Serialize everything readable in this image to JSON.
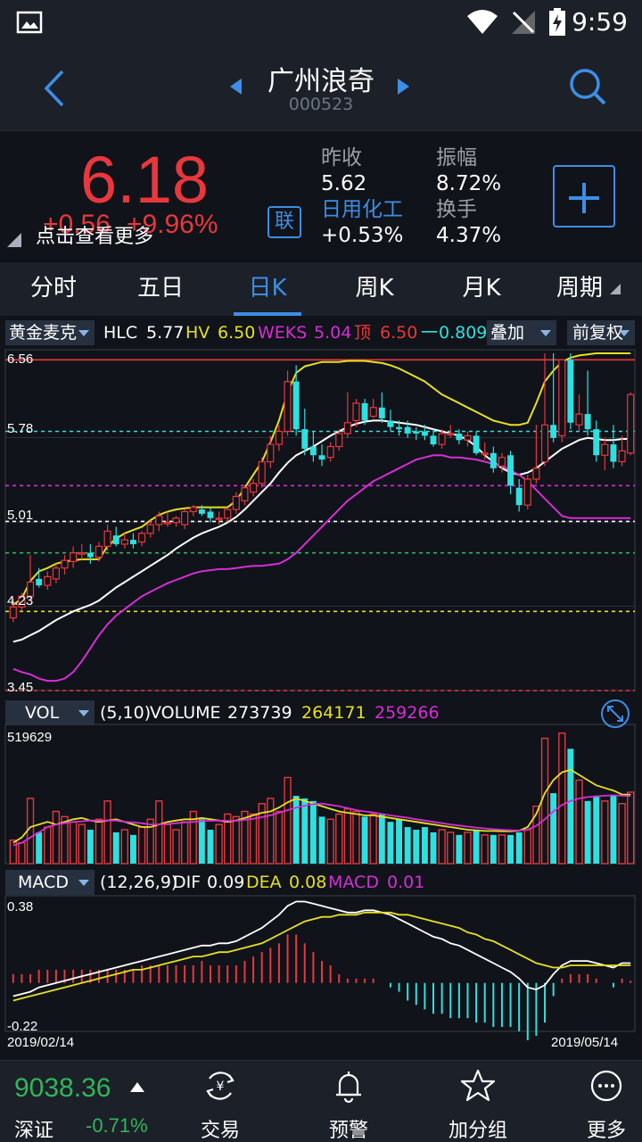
{
  "status_bar": {
    "time": "9:59"
  },
  "header": {
    "title": "广州浪奇",
    "code": "000523"
  },
  "quote": {
    "price": "6.18",
    "change_abs": "+0.56",
    "change_pct": "+9.96%",
    "tap_hint": "点击查看更多",
    "lian_badge": "联",
    "prev_close_label": "昨收",
    "prev_close": "5.62",
    "sector_label": "日用化工",
    "sector_change": "+0.53%",
    "amplitude_label": "振幅",
    "amplitude": "8.72%",
    "turnover_label": "换手",
    "turnover": "4.37%"
  },
  "tabs": [
    {
      "label": "分时"
    },
    {
      "label": "五日"
    },
    {
      "label": "日K"
    },
    {
      "label": "周K"
    },
    {
      "label": "月K"
    },
    {
      "label": "周期"
    }
  ],
  "active_tab": "日K",
  "main_legend": {
    "indicator": "黄金麦克",
    "hlc_label": "HLC",
    "hlc": "5.77",
    "hv_label": "HV",
    "hv": "6.50",
    "weks_label": "WEKS",
    "weks": "5.04",
    "top_label": "顶",
    "top": "6.50",
    "bottom_label": "一",
    "bottom": "0.809",
    "overlay": "叠加",
    "adjust": "前复权"
  },
  "vol_legend": {
    "indicator": "VOL",
    "params": "(5,10)",
    "volume_label": "VOLUME",
    "volume": "273739",
    "ma5": "264171",
    "ma10": "259266"
  },
  "macd_legend": {
    "indicator": "MACD",
    "params": "(12,26,9)",
    "dif_label": "DIF",
    "dif": "0.09",
    "dea_label": "DEA",
    "dea": "0.08",
    "macd_label": "MACD",
    "macd": "0.01"
  },
  "axis": {
    "price_ticks": [
      "6.56",
      "5.78",
      "5.01",
      "4.23",
      "3.45"
    ],
    "vol_max": "519629",
    "macd_max": "0.38",
    "macd_min": "-0.22",
    "start_date": "2019/02/14",
    "end_date": "2019/05/14"
  },
  "colors": {
    "up": "#e8383d",
    "down": "#2fe0e0",
    "hlc": "#ffffff",
    "hv": "#e6e024",
    "weks": "#d62ed6",
    "accent": "#3d8ee6"
  },
  "chart_data": {
    "type": "candlestick",
    "ylim": [
      3.45,
      6.56
    ],
    "candles": [
      {
        "o": 4.12,
        "h": 4.3,
        "l": 4.08,
        "c": 4.22
      },
      {
        "o": 4.22,
        "h": 4.35,
        "l": 4.18,
        "c": 4.32
      },
      {
        "o": 4.32,
        "h": 4.7,
        "l": 4.28,
        "c": 4.45
      },
      {
        "o": 4.48,
        "h": 4.58,
        "l": 4.4,
        "c": 4.42
      },
      {
        "o": 4.42,
        "h": 4.55,
        "l": 4.38,
        "c": 4.5
      },
      {
        "o": 4.48,
        "h": 4.62,
        "l": 4.44,
        "c": 4.58
      },
      {
        "o": 4.58,
        "h": 4.7,
        "l": 4.52,
        "c": 4.65
      },
      {
        "o": 4.64,
        "h": 4.78,
        "l": 4.58,
        "c": 4.72
      },
      {
        "o": 4.72,
        "h": 4.8,
        "l": 4.66,
        "c": 4.72
      },
      {
        "o": 4.72,
        "h": 4.8,
        "l": 4.62,
        "c": 4.68
      },
      {
        "o": 4.68,
        "h": 4.82,
        "l": 4.64,
        "c": 4.78
      },
      {
        "o": 4.78,
        "h": 4.98,
        "l": 4.74,
        "c": 4.92
      },
      {
        "o": 4.88,
        "h": 4.96,
        "l": 4.78,
        "c": 4.8
      },
      {
        "o": 4.8,
        "h": 4.9,
        "l": 4.76,
        "c": 4.84
      },
      {
        "o": 4.84,
        "h": 4.9,
        "l": 4.76,
        "c": 4.8
      },
      {
        "o": 4.82,
        "h": 4.92,
        "l": 4.78,
        "c": 4.9
      },
      {
        "o": 4.9,
        "h": 5.02,
        "l": 4.86,
        "c": 4.98
      },
      {
        "o": 4.98,
        "h": 5.1,
        "l": 4.92,
        "c": 5.06
      },
      {
        "o": 5.0,
        "h": 5.1,
        "l": 4.96,
        "c": 5.0
      },
      {
        "o": 5.0,
        "h": 5.06,
        "l": 4.96,
        "c": 5.04
      },
      {
        "o": 4.98,
        "h": 5.12,
        "l": 4.94,
        "c": 5.1
      },
      {
        "o": 5.1,
        "h": 5.16,
        "l": 5.06,
        "c": 5.14
      },
      {
        "o": 5.12,
        "h": 5.16,
        "l": 5.06,
        "c": 5.08
      },
      {
        "o": 5.1,
        "h": 5.14,
        "l": 5.0,
        "c": 5.04
      },
      {
        "o": 5.04,
        "h": 5.1,
        "l": 4.98,
        "c": 5.04
      },
      {
        "o": 5.04,
        "h": 5.14,
        "l": 5.0,
        "c": 5.12
      },
      {
        "o": 5.12,
        "h": 5.28,
        "l": 5.08,
        "c": 5.24
      },
      {
        "o": 5.2,
        "h": 5.34,
        "l": 5.16,
        "c": 5.32
      },
      {
        "o": 5.28,
        "h": 5.4,
        "l": 5.24,
        "c": 5.36
      },
      {
        "o": 5.36,
        "h": 5.6,
        "l": 5.32,
        "c": 5.56
      },
      {
        "o": 5.56,
        "h": 5.8,
        "l": 5.5,
        "c": 5.72
      },
      {
        "o": 5.72,
        "h": 5.9,
        "l": 5.66,
        "c": 5.84
      },
      {
        "o": 5.84,
        "h": 6.4,
        "l": 5.8,
        "c": 6.3
      },
      {
        "o": 6.3,
        "h": 6.45,
        "l": 5.8,
        "c": 5.86
      },
      {
        "o": 5.86,
        "h": 6.05,
        "l": 5.62,
        "c": 5.68
      },
      {
        "o": 5.7,
        "h": 5.84,
        "l": 5.56,
        "c": 5.62
      },
      {
        "o": 5.62,
        "h": 5.72,
        "l": 5.52,
        "c": 5.58
      },
      {
        "o": 5.6,
        "h": 5.74,
        "l": 5.56,
        "c": 5.7
      },
      {
        "o": 5.7,
        "h": 5.86,
        "l": 5.66,
        "c": 5.82
      },
      {
        "o": 5.82,
        "h": 6.2,
        "l": 5.78,
        "c": 5.92
      },
      {
        "o": 5.94,
        "h": 6.14,
        "l": 5.88,
        "c": 6.1
      },
      {
        "o": 6.1,
        "h": 6.14,
        "l": 5.9,
        "c": 5.94
      },
      {
        "o": 5.98,
        "h": 6.14,
        "l": 5.96,
        "c": 6.06
      },
      {
        "o": 6.06,
        "h": 6.2,
        "l": 5.92,
        "c": 5.96
      },
      {
        "o": 5.94,
        "h": 6.04,
        "l": 5.84,
        "c": 5.88
      },
      {
        "o": 5.88,
        "h": 5.94,
        "l": 5.8,
        "c": 5.86
      },
      {
        "o": 5.88,
        "h": 5.94,
        "l": 5.78,
        "c": 5.82
      },
      {
        "o": 5.84,
        "h": 5.88,
        "l": 5.76,
        "c": 5.82
      },
      {
        "o": 5.84,
        "h": 5.9,
        "l": 5.76,
        "c": 5.8
      },
      {
        "o": 5.8,
        "h": 5.86,
        "l": 5.7,
        "c": 5.72
      },
      {
        "o": 5.72,
        "h": 5.86,
        "l": 5.68,
        "c": 5.82
      },
      {
        "o": 5.82,
        "h": 5.9,
        "l": 5.78,
        "c": 5.82
      },
      {
        "o": 5.82,
        "h": 5.86,
        "l": 5.72,
        "c": 5.76
      },
      {
        "o": 5.76,
        "h": 5.84,
        "l": 5.7,
        "c": 5.8
      },
      {
        "o": 5.8,
        "h": 5.84,
        "l": 5.62,
        "c": 5.64
      },
      {
        "o": 5.64,
        "h": 5.74,
        "l": 5.58,
        "c": 5.64
      },
      {
        "o": 5.64,
        "h": 5.7,
        "l": 5.46,
        "c": 5.5
      },
      {
        "o": 5.52,
        "h": 5.64,
        "l": 5.46,
        "c": 5.6
      },
      {
        "o": 5.62,
        "h": 5.66,
        "l": 5.26,
        "c": 5.34
      },
      {
        "o": 5.32,
        "h": 5.4,
        "l": 5.1,
        "c": 5.16
      },
      {
        "o": 5.16,
        "h": 5.44,
        "l": 5.12,
        "c": 5.4
      },
      {
        "o": 5.4,
        "h": 5.9,
        "l": 5.36,
        "c": 5.5
      },
      {
        "o": 5.56,
        "h": 6.56,
        "l": 5.52,
        "c": 5.9
      },
      {
        "o": 5.9,
        "h": 6.56,
        "l": 5.74,
        "c": 5.78
      },
      {
        "o": 5.8,
        "h": 6.5,
        "l": 5.74,
        "c": 6.5
      },
      {
        "o": 6.5,
        "h": 6.56,
        "l": 5.86,
        "c": 5.92
      },
      {
        "o": 5.9,
        "h": 6.18,
        "l": 5.84,
        "c": 6.0
      },
      {
        "o": 6.0,
        "h": 6.4,
        "l": 5.8,
        "c": 5.86
      },
      {
        "o": 5.86,
        "h": 5.94,
        "l": 5.56,
        "c": 5.62
      },
      {
        "o": 5.62,
        "h": 5.78,
        "l": 5.48,
        "c": 5.72
      },
      {
        "o": 5.72,
        "h": 5.9,
        "l": 5.5,
        "c": 5.56
      },
      {
        "o": 5.56,
        "h": 5.8,
        "l": 5.52,
        "c": 5.66
      },
      {
        "o": 5.64,
        "h": 6.2,
        "l": 5.62,
        "c": 6.18
      }
    ],
    "hlc": [
      3.9,
      3.92,
      3.96,
      4.0,
      4.05,
      4.1,
      4.14,
      4.18,
      4.21,
      4.24,
      4.28,
      4.34,
      4.4,
      4.45,
      4.5,
      4.55,
      4.6,
      4.65,
      4.7,
      4.76,
      4.81,
      4.86,
      4.9,
      4.93,
      4.96,
      5.0,
      5.05,
      5.12,
      5.2,
      5.28,
      5.36,
      5.46,
      5.55,
      5.62,
      5.66,
      5.7,
      5.75,
      5.8,
      5.84,
      5.88,
      5.91,
      5.93,
      5.94,
      5.94,
      5.93,
      5.92,
      5.91,
      5.9,
      5.88,
      5.86,
      5.84,
      5.82,
      5.8,
      5.76,
      5.7,
      5.62,
      5.56,
      5.5,
      5.46,
      5.44,
      5.46,
      5.5,
      5.56,
      5.62,
      5.68,
      5.72,
      5.76,
      5.78,
      5.77,
      5.76,
      5.76,
      5.77,
      5.77
    ],
    "hv": [
      4.24,
      4.3,
      4.46,
      4.55,
      4.58,
      4.62,
      4.64,
      4.65,
      4.66,
      4.66,
      4.66,
      4.78,
      4.85,
      4.9,
      4.93,
      4.96,
      5.02,
      5.07,
      5.1,
      5.12,
      5.13,
      5.14,
      5.14,
      5.14,
      5.14,
      5.14,
      5.2,
      5.32,
      5.44,
      5.56,
      5.74,
      5.94,
      6.2,
      6.38,
      6.44,
      6.46,
      6.48,
      6.48,
      6.48,
      6.49,
      6.49,
      6.49,
      6.48,
      6.47,
      6.45,
      6.42,
      6.38,
      6.34,
      6.3,
      6.24,
      6.18,
      6.14,
      6.1,
      6.06,
      6.02,
      5.98,
      5.94,
      5.92,
      5.9,
      5.9,
      5.92,
      6.1,
      6.3,
      6.4,
      6.48,
      6.52,
      6.54,
      6.55,
      6.56,
      6.56,
      6.56,
      6.56,
      6.56
    ],
    "weks": [
      3.65,
      3.62,
      3.6,
      3.56,
      3.54,
      3.54,
      3.56,
      3.62,
      3.72,
      3.84,
      3.96,
      4.06,
      4.14,
      4.2,
      4.26,
      4.32,
      4.36,
      4.4,
      4.44,
      4.47,
      4.5,
      4.53,
      4.55,
      4.56,
      4.57,
      4.57,
      4.58,
      4.59,
      4.6,
      4.6,
      4.61,
      4.62,
      4.66,
      4.72,
      4.8,
      4.88,
      4.96,
      5.04,
      5.12,
      5.2,
      5.26,
      5.32,
      5.38,
      5.42,
      5.46,
      5.5,
      5.54,
      5.58,
      5.6,
      5.62,
      5.62,
      5.6,
      5.6,
      5.59,
      5.58,
      5.56,
      5.54,
      5.52,
      5.48,
      5.44,
      5.38,
      5.3,
      5.22,
      5.14,
      5.06,
      5.04,
      5.04,
      5.04,
      5.04,
      5.04,
      5.04,
      5.04,
      5.04
    ],
    "ref_lines": [
      {
        "value": 6.5,
        "color": "#e8383d",
        "style": "solid"
      },
      {
        "value": 5.84,
        "color": "#2fe0e0",
        "style": "dashed"
      },
      {
        "value": 5.34,
        "color": "#d62ed6",
        "style": "dashed"
      },
      {
        "value": 5.01,
        "color": "#ffffff",
        "style": "dashed"
      },
      {
        "value": 4.72,
        "color": "#2fb65a",
        "style": "dashed"
      },
      {
        "value": 4.18,
        "color": "#e6e024",
        "style": "dashed"
      },
      {
        "value": 3.45,
        "color": "#e8383d",
        "style": "dashed"
      }
    ],
    "volume": {
      "ylim": [
        0,
        519629
      ],
      "values": [
        90,
        80,
        250,
        120,
        140,
        200,
        180,
        160,
        150,
        130,
        170,
        240,
        120,
        130,
        110,
        140,
        170,
        240,
        150,
        130,
        160,
        200,
        170,
        130,
        150,
        190,
        180,
        200,
        190,
        230,
        250,
        200,
        330,
        260,
        250,
        240,
        180,
        170,
        190,
        210,
        200,
        180,
        190,
        190,
        160,
        170,
        140,
        130,
        140,
        120,
        130,
        120,
        110,
        120,
        130,
        110,
        110,
        110,
        110,
        120,
        130,
        220,
        480,
        270,
        500,
        440,
        320,
        240,
        260,
        240,
        260,
        230,
        273.739
      ],
      "unit_scale": 1000,
      "ma5": [
        80,
        100,
        140,
        150,
        160,
        150,
        160,
        170,
        175,
        165,
        160,
        165,
        170,
        160,
        150,
        140,
        140,
        150,
        160,
        165,
        170,
        170,
        175,
        170,
        165,
        160,
        165,
        175,
        185,
        195,
        200,
        215,
        235,
        250,
        240,
        230,
        220,
        210,
        200,
        195,
        190,
        185,
        185,
        180,
        175,
        170,
        165,
        160,
        155,
        150,
        145,
        140,
        135,
        130,
        128,
        125,
        125,
        124,
        124,
        126,
        140,
        190,
        270,
        320,
        350,
        360,
        340,
        320,
        300,
        290,
        280,
        265,
        264.171
      ],
      "ma10": [
        70,
        80,
        100,
        120,
        140,
        150,
        155,
        160,
        162,
        165,
        165,
        165,
        165,
        160,
        158,
        155,
        150,
        150,
        152,
        155,
        158,
        160,
        163,
        164,
        165,
        164,
        164,
        168,
        172,
        178,
        185,
        195,
        205,
        215,
        222,
        228,
        230,
        225,
        220,
        213,
        205,
        200,
        196,
        190,
        185,
        180,
        176,
        170,
        165,
        160,
        155,
        150,
        146,
        142,
        138,
        135,
        132,
        130,
        128,
        127,
        130,
        145,
        170,
        200,
        225,
        240,
        250,
        255,
        258,
        260,
        262,
        260,
        259.266
      ]
    },
    "macd": {
      "ylim": [
        -0.22,
        0.38
      ],
      "dif": [
        -0.06,
        -0.05,
        -0.04,
        -0.02,
        -0.01,
        0.0,
        0.01,
        0.02,
        0.03,
        0.04,
        0.05,
        0.06,
        0.07,
        0.08,
        0.09,
        0.1,
        0.11,
        0.12,
        0.13,
        0.14,
        0.15,
        0.16,
        0.17,
        0.17,
        0.18,
        0.18,
        0.19,
        0.21,
        0.23,
        0.25,
        0.28,
        0.31,
        0.35,
        0.37,
        0.37,
        0.36,
        0.35,
        0.34,
        0.33,
        0.32,
        0.32,
        0.33,
        0.33,
        0.32,
        0.31,
        0.29,
        0.27,
        0.25,
        0.23,
        0.21,
        0.2,
        0.18,
        0.17,
        0.15,
        0.13,
        0.11,
        0.09,
        0.07,
        0.05,
        0.02,
        -0.02,
        -0.03,
        -0.01,
        0.04,
        0.08,
        0.1,
        0.1,
        0.1,
        0.09,
        0.08,
        0.07,
        0.09,
        0.09
      ],
      "dea": [
        -0.08,
        -0.07,
        -0.06,
        -0.05,
        -0.04,
        -0.03,
        -0.02,
        -0.01,
        0.0,
        0.01,
        0.02,
        0.03,
        0.04,
        0.05,
        0.06,
        0.06,
        0.07,
        0.08,
        0.09,
        0.1,
        0.11,
        0.12,
        0.12,
        0.13,
        0.14,
        0.14,
        0.15,
        0.16,
        0.17,
        0.18,
        0.2,
        0.22,
        0.24,
        0.26,
        0.28,
        0.29,
        0.3,
        0.3,
        0.31,
        0.31,
        0.31,
        0.32,
        0.32,
        0.32,
        0.32,
        0.31,
        0.31,
        0.3,
        0.29,
        0.28,
        0.27,
        0.26,
        0.25,
        0.23,
        0.22,
        0.2,
        0.19,
        0.17,
        0.15,
        0.13,
        0.11,
        0.09,
        0.08,
        0.07,
        0.07,
        0.08,
        0.08,
        0.08,
        0.08,
        0.08,
        0.08,
        0.08,
        0.08
      ],
      "hist": [
        0.04,
        0.04,
        0.04,
        0.06,
        0.06,
        0.06,
        0.06,
        0.06,
        0.06,
        0.06,
        0.06,
        0.06,
        0.06,
        0.06,
        0.06,
        0.08,
        0.08,
        0.08,
        0.08,
        0.08,
        0.08,
        0.08,
        0.1,
        0.08,
        0.08,
        0.08,
        0.08,
        0.1,
        0.12,
        0.14,
        0.16,
        0.18,
        0.22,
        0.22,
        0.18,
        0.14,
        0.1,
        0.08,
        0.04,
        0.02,
        0.02,
        0.02,
        0.02,
        0.0,
        -0.02,
        -0.04,
        -0.08,
        -0.1,
        -0.12,
        -0.14,
        -0.14,
        -0.16,
        -0.16,
        -0.16,
        -0.18,
        -0.18,
        -0.2,
        -0.2,
        -0.2,
        -0.22,
        -0.26,
        -0.24,
        -0.18,
        -0.06,
        0.02,
        0.04,
        0.04,
        0.04,
        0.02,
        0.0,
        -0.02,
        0.02,
        0.01
      ]
    }
  }
}
